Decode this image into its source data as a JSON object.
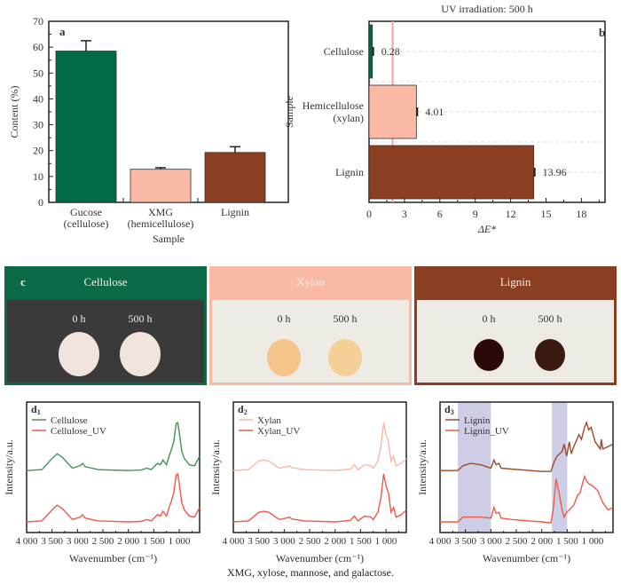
{
  "chart_data": [
    {
      "panel": "a",
      "type": "bar",
      "title": "",
      "xlabel": "Sample",
      "ylabel": "Content (%)",
      "ylim": [
        0,
        70
      ],
      "yticks": [
        0,
        10,
        20,
        30,
        40,
        50,
        60,
        70
      ],
      "categories": [
        "Gucose (cellulose)",
        "XMG (hemicellulose)",
        "Lignin"
      ],
      "category_lines": [
        [
          "Gucose",
          "(cellulose)"
        ],
        [
          "XMG",
          "(hemicellulose)"
        ],
        [
          "Lignin"
        ]
      ],
      "values": [
        58.5,
        12.8,
        19.3
      ],
      "errors": [
        4.0,
        0.6,
        2.2
      ],
      "colors": [
        "#006a45",
        "#f9b9a4",
        "#8c3f20"
      ],
      "grid": false
    },
    {
      "panel": "b",
      "type": "bar",
      "orientation": "horizontal",
      "title": "UV irradiation: 500 h",
      "xlabel": "ΔE*",
      "ylabel": "Sample",
      "xlim": [
        0,
        20
      ],
      "xticks": [
        0,
        3,
        6,
        9,
        12,
        15,
        18
      ],
      "categories": [
        "Cellulose",
        "Hemicellulose (xylan)",
        "Lignin"
      ],
      "category_lines": [
        [
          "Cellulose"
        ],
        [
          "Hemicellulose",
          "(xylan)"
        ],
        [
          "Lignin"
        ]
      ],
      "values": [
        0.28,
        4.01,
        13.96
      ],
      "value_labels": [
        "0.28",
        "4.01",
        "13.96"
      ],
      "colors": [
        "#006a45",
        "#f9b9a4",
        "#8c3f20"
      ],
      "reference_line": 2.0,
      "reference_color": "#f4a3a3",
      "grid": "dashed horizontal"
    },
    {
      "panel": "d1",
      "type": "line",
      "xlabel": "Wavenumber (cm⁻¹)",
      "ylabel": "Intensity/a.u.",
      "xlim": [
        4000,
        600
      ],
      "xticks": [
        4000,
        3500,
        3000,
        2500,
        2000,
        1500,
        1000
      ],
      "xtick_labels": [
        "4 000",
        "3 500",
        "3 000",
        "2 500",
        "2 000",
        "1 500",
        "1 000"
      ],
      "series": [
        {
          "name": "Cellulose",
          "color": "#4a8f5a",
          "offset": 1,
          "x": [
            4000,
            3700,
            3500,
            3400,
            3300,
            3100,
            2950,
            2900,
            2850,
            2600,
            2000,
            1750,
            1640,
            1550,
            1430,
            1370,
            1320,
            1250,
            1200,
            1160,
            1110,
            1060,
            1030,
            1000,
            950,
            900,
            800,
            700,
            600
          ],
          "y": [
            0.0,
            0.02,
            0.25,
            0.35,
            0.28,
            0.05,
            0.1,
            0.15,
            0.08,
            0.02,
            0.0,
            0.01,
            0.05,
            0.02,
            0.15,
            0.12,
            0.22,
            0.12,
            0.3,
            0.42,
            0.6,
            0.98,
            1.0,
            0.8,
            0.4,
            0.25,
            0.12,
            0.1,
            0.3
          ]
        },
        {
          "name": "Cellulose_UV",
          "color": "#ee5a4a",
          "offset": 0,
          "x": [
            4000,
            3700,
            3500,
            3400,
            3300,
            3100,
            2950,
            2900,
            2850,
            2600,
            2000,
            1750,
            1640,
            1550,
            1430,
            1370,
            1320,
            1250,
            1200,
            1160,
            1110,
            1060,
            1030,
            1000,
            950,
            900,
            800,
            700,
            600
          ],
          "y": [
            0.0,
            0.02,
            0.25,
            0.35,
            0.28,
            0.05,
            0.1,
            0.15,
            0.08,
            0.02,
            0.0,
            0.01,
            0.05,
            0.02,
            0.15,
            0.12,
            0.22,
            0.12,
            0.3,
            0.42,
            0.6,
            0.98,
            1.0,
            0.8,
            0.4,
            0.25,
            0.12,
            0.1,
            0.3
          ]
        }
      ],
      "legend": "top-left"
    },
    {
      "panel": "d2",
      "type": "line",
      "xlabel": "Wavenumber (cm⁻¹)",
      "ylabel": "Intensity/a.u.",
      "xlim": [
        4000,
        600
      ],
      "xticks": [
        4000,
        3500,
        3000,
        2500,
        2000,
        1500,
        1000
      ],
      "xtick_labels": [
        "4 000",
        "3 500",
        "3 000",
        "2 500",
        "2 000",
        "1 500",
        "1 000"
      ],
      "series": [
        {
          "name": "Xylan",
          "color": "#f7b8a8",
          "offset": 1,
          "x": [
            4000,
            3700,
            3500,
            3400,
            3300,
            3100,
            2950,
            2900,
            2850,
            2600,
            2000,
            1700,
            1620,
            1550,
            1420,
            1300,
            1250,
            1160,
            1100,
            1045,
            1000,
            950,
            900,
            850,
            800,
            700,
            600
          ],
          "y": [
            0.0,
            0.02,
            0.2,
            0.22,
            0.2,
            0.05,
            0.08,
            0.1,
            0.06,
            0.02,
            0.0,
            0.03,
            0.12,
            0.02,
            0.12,
            0.1,
            0.05,
            0.2,
            0.5,
            1.0,
            0.75,
            0.6,
            0.2,
            0.3,
            0.1,
            0.15,
            0.25
          ]
        },
        {
          "name": "Xylan_UV",
          "color": "#ef5a48",
          "offset": 0,
          "x": [
            4000,
            3700,
            3500,
            3400,
            3300,
            3100,
            2950,
            2900,
            2850,
            2600,
            2000,
            1700,
            1620,
            1550,
            1420,
            1300,
            1250,
            1160,
            1100,
            1045,
            1000,
            950,
            900,
            850,
            800,
            700,
            600
          ],
          "y": [
            0.0,
            0.02,
            0.2,
            0.22,
            0.2,
            0.05,
            0.08,
            0.1,
            0.06,
            0.02,
            0.0,
            0.03,
            0.12,
            0.02,
            0.12,
            0.1,
            0.05,
            0.2,
            0.5,
            1.0,
            0.75,
            0.6,
            0.2,
            0.3,
            0.1,
            0.15,
            0.25
          ]
        }
      ],
      "legend": "top-left"
    },
    {
      "panel": "d3",
      "type": "line",
      "xlabel": "Wavenumber (cm⁻¹)",
      "ylabel": "Intensity/a.u.",
      "xlim": [
        4000,
        600
      ],
      "xticks": [
        4000,
        3500,
        3000,
        2500,
        2000,
        1500,
        1000
      ],
      "xtick_labels": [
        "4 000",
        "3 500",
        "3 000",
        "2 500",
        "2 000",
        "1 500",
        "1 000"
      ],
      "highlight_ranges": [
        [
          3650,
          3000
        ],
        [
          1800,
          1500
        ]
      ],
      "series": [
        {
          "name": "Lignin",
          "color": "#9a4a2a",
          "offset": 1,
          "x": [
            4000,
            3650,
            3550,
            3400,
            3200,
            3000,
            2940,
            2900,
            2840,
            2800,
            2600,
            2000,
            1820,
            1750,
            1700,
            1600,
            1560,
            1510,
            1460,
            1420,
            1370,
            1330,
            1270,
            1220,
            1160,
            1120,
            1080,
            1030,
            950,
            850,
            830,
            800,
            700,
            600
          ],
          "y": [
            0.0,
            0.0,
            0.1,
            0.15,
            0.12,
            0.05,
            0.22,
            0.12,
            0.15,
            0.05,
            0.03,
            -0.02,
            -0.02,
            0.2,
            0.3,
            0.4,
            0.55,
            0.3,
            0.6,
            0.35,
            0.5,
            0.6,
            0.75,
            0.65,
            0.9,
            1.0,
            0.85,
            0.9,
            0.6,
            0.45,
            0.65,
            0.45,
            0.5,
            0.55
          ]
        },
        {
          "name": "Lignin_UV",
          "color": "#ef5a48",
          "offset": 0,
          "x": [
            4000,
            3650,
            3550,
            3400,
            3200,
            3000,
            2940,
            2900,
            2840,
            2800,
            2600,
            2000,
            1820,
            1780,
            1720,
            1660,
            1600,
            1560,
            1510,
            1460,
            1420,
            1370,
            1300,
            1250,
            1200,
            1160,
            1120,
            1080,
            1000,
            900,
            800,
            700,
            600
          ],
          "y": [
            0.0,
            0.0,
            0.1,
            0.1,
            0.1,
            0.08,
            0.3,
            0.18,
            0.2,
            0.08,
            0.05,
            0.0,
            -0.02,
            0.2,
            0.9,
            0.6,
            0.25,
            0.1,
            0.2,
            0.25,
            0.3,
            0.35,
            0.55,
            0.6,
            0.8,
            0.95,
            0.85,
            0.8,
            0.75,
            0.65,
            0.4,
            0.25,
            0.3
          ]
        }
      ],
      "legend": "top-left"
    }
  ],
  "panels": {
    "a": {
      "letter": "a"
    },
    "b": {
      "letter": "b"
    },
    "c": {
      "letter": "c",
      "cells": [
        {
          "title": "Cellulose",
          "head_color": "#0b6b46",
          "body_color": "#3a3a3a",
          "border": "#0b6b46",
          "discs": [
            {
              "label": "0 h",
              "color": "#f1e4dc"
            },
            {
              "label": "500 h",
              "color": "#f1e4dc"
            }
          ]
        },
        {
          "title": "Xylan",
          "head_color": "#f9b9a4",
          "body_color": "#eeebe4",
          "border": "#f9b9a4",
          "discs": [
            {
              "label": "0 h",
              "color": "#f4c48a"
            },
            {
              "label": "500 h",
              "color": "#f4cf96"
            }
          ]
        },
        {
          "title": "Lignin",
          "head_color": "#8c3f20",
          "body_color": "#eeebe4",
          "border": "#8c3f20",
          "discs": [
            {
              "label": "0 h",
              "color": "#2a0a08"
            },
            {
              "label": "500 h",
              "color": "#3a1a0e"
            }
          ]
        }
      ]
    },
    "d1": {
      "letter": "d",
      "sub": "1"
    },
    "d2": {
      "letter": "d",
      "sub": "2"
    },
    "d3": {
      "letter": "d",
      "sub": "3"
    }
  },
  "caption": "XMG, xylose, mannose, and galactose."
}
